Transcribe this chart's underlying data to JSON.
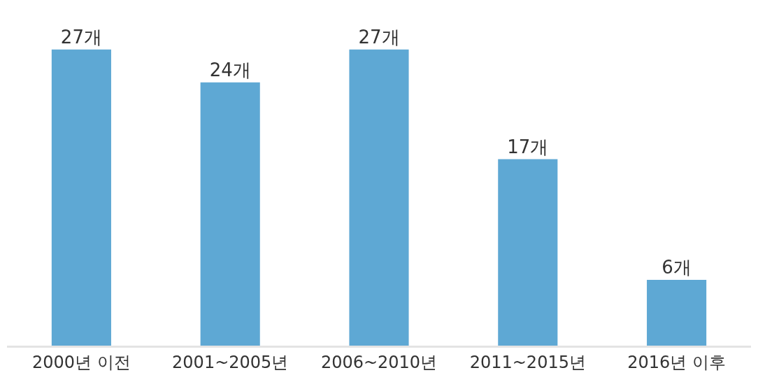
{
  "chart_data": {
    "type": "bar",
    "categories": [
      "2000년 이전",
      "2001~2005년",
      "2006~2010년",
      "2011~2015년",
      "2016년 이후"
    ],
    "values": [
      27,
      24,
      27,
      17,
      6
    ],
    "value_labels": [
      "27개",
      "24개",
      "27개",
      "17개",
      "6개"
    ],
    "color": "#5ea8d4",
    "legend": false
  }
}
